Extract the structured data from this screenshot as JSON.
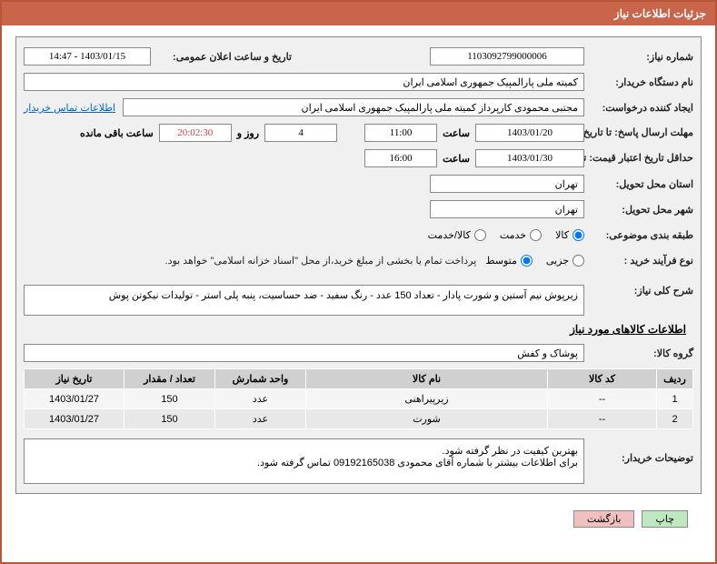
{
  "header": {
    "title": "جزئیات اطلاعات نیاز"
  },
  "fields": {
    "needNumber": {
      "label": "شماره نیاز:",
      "value": "1103092799000006"
    },
    "announceDate": {
      "label": "تاریخ و ساعت اعلان عمومی:",
      "value": "1403/01/15 - 14:47"
    },
    "buyerName": {
      "label": "نام دستگاه خریدار:",
      "value": "کمیته ملی پارالمپیک جمهوری اسلامی ایران"
    },
    "requester": {
      "label": "ایجاد کننده درخواست:",
      "value": "مجتبی محمودی کارپرداز کمیته ملی پارالمپیک جمهوری اسلامی ایران"
    },
    "contactLink": "اطلاعات تماس خریدار",
    "replyDeadline": {
      "label": "مهلت ارسال پاسخ: تا تاریخ:",
      "date": "1403/01/20",
      "hourLabel": "ساعت",
      "hour": "11:00",
      "daysLabel": "روز و",
      "days": "4",
      "timeLeft": "20:02:30",
      "remaining": "ساعت باقی مانده"
    },
    "priceValidity": {
      "label": "حداقل تاریخ اعتبار قیمت: تا تاریخ:",
      "date": "1403/01/30",
      "hourLabel": "ساعت",
      "hour": "16:00"
    },
    "province": {
      "label": "استان محل تحویل:",
      "value": "تهران"
    },
    "city": {
      "label": "شهر محل تحویل:",
      "value": "تهران"
    },
    "category": {
      "label": "طبقه بندی موضوعی:",
      "options": [
        "کالا",
        "خدمت",
        "کالا/خدمت"
      ],
      "selected": 0
    },
    "processType": {
      "label": "نوع فرآیند خرید :",
      "options": [
        "جزیی",
        "متوسط"
      ],
      "selected": 1,
      "note": "پرداخت تمام یا بخشی از مبلغ خرید،از محل \"اسناد خزانه اسلامی\" خواهد بود."
    },
    "generalDesc": {
      "label": "شرح کلی نیاز:",
      "value": "زیرپوش نیم آستین و شورت پادار - تعداد 150 عدد - رنگ سفید - ضد حساسیت، پنبه پلی استر - تولیدات نیکوتن پوش"
    },
    "goodsSection": "اطلاعات کالاهای مورد نیاز",
    "goodsGroup": {
      "label": "گروه کالا:",
      "value": "پوشاک و کفش"
    },
    "buyerDesc": {
      "label": "توضیحات خریدار:",
      "value": "بهترین کیفیت در نظر گرفته شود.\nبرای اطلاعات بیشتر با شماره آقای محمودی 09192165038 تماس گرفته شود."
    }
  },
  "table": {
    "headers": [
      "ردیف",
      "کد کالا",
      "نام کالا",
      "واحد شمارش",
      "تعداد / مقدار",
      "تاریخ نیاز"
    ],
    "rows": [
      [
        "1",
        "--",
        "زیرپیراهنی",
        "عدد",
        "150",
        "1403/01/27"
      ],
      [
        "2",
        "--",
        "شورت",
        "عدد",
        "150",
        "1403/01/27"
      ]
    ],
    "colWidths": [
      "40px",
      "120px",
      "auto",
      "100px",
      "100px",
      "110px"
    ]
  },
  "buttons": {
    "print": "چاپ",
    "back": "بازگشت"
  },
  "colors": {
    "primary": "#c8654a",
    "border": "#b8563a",
    "link": "#0066cc"
  }
}
